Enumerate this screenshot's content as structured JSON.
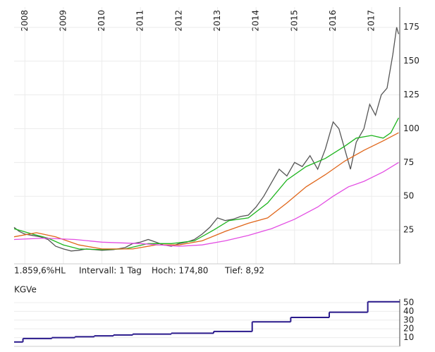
{
  "chart_data": [
    {
      "type": "line",
      "xlim": [
        2007.72,
        2017.73
      ],
      "xticks": [
        2008,
        2009,
        2010,
        2011,
        2012,
        2013,
        2014,
        2015,
        2016,
        2017
      ],
      "ylim": [
        0,
        190
      ],
      "yticks": [
        25,
        50,
        75,
        100,
        125,
        150,
        175
      ],
      "grid": true,
      "series": [
        {
          "color": "#555555",
          "x": [
            2007.72,
            2007.85,
            2008.0,
            2008.2,
            2008.4,
            2008.6,
            2008.8,
            2009.0,
            2009.2,
            2009.4,
            2009.6,
            2009.8,
            2010.0,
            2010.3,
            2010.6,
            2010.8,
            2011.0,
            2011.2,
            2011.4,
            2011.6,
            2011.8,
            2012.0,
            2012.2,
            2012.4,
            2012.6,
            2012.8,
            2013.0,
            2013.2,
            2013.4,
            2013.6,
            2013.8,
            2014.0,
            2014.2,
            2014.4,
            2014.6,
            2014.8,
            2015.0,
            2015.2,
            2015.4,
            2015.6,
            2015.8,
            2016.0,
            2016.15,
            2016.3,
            2016.45,
            2016.6,
            2016.8,
            2016.95,
            2017.1,
            2017.25,
            2017.4,
            2017.55,
            2017.65,
            2017.7
          ],
          "values": [
            27,
            24,
            22,
            21,
            20,
            18,
            13,
            11,
            9.5,
            10,
            11,
            10.5,
            10,
            10.5,
            12,
            15,
            16,
            18,
            16,
            14,
            13,
            15,
            16,
            18,
            22,
            27,
            34,
            32,
            33,
            35,
            36,
            42,
            50,
            60,
            70,
            65,
            75,
            72,
            80,
            70,
            85,
            105,
            100,
            85,
            70,
            90,
            100,
            118,
            110,
            125,
            130,
            155,
            175,
            170
          ]
        },
        {
          "color": "#1db41d",
          "x": [
            2007.72,
            2008.2,
            2008.6,
            2009.0,
            2009.4,
            2010.0,
            2010.6,
            2011.2,
            2011.8,
            2012.4,
            2012.9,
            2013.3,
            2013.8,
            2014.3,
            2014.8,
            2015.3,
            2015.8,
            2016.3,
            2016.6,
            2017.0,
            2017.3,
            2017.5,
            2017.7
          ],
          "values": [
            26,
            22,
            19,
            14,
            11,
            10.5,
            11,
            15,
            15,
            17,
            25,
            32,
            34,
            45,
            62,
            72,
            78,
            87,
            93,
            95,
            93,
            97,
            108
          ]
        },
        {
          "color": "#e0661a",
          "x": [
            2007.72,
            2008.3,
            2008.8,
            2009.4,
            2010.0,
            2010.8,
            2011.4,
            2012.0,
            2012.6,
            2013.2,
            2013.8,
            2014.3,
            2014.8,
            2015.3,
            2015.8,
            2016.3,
            2016.8,
            2017.3,
            2017.7
          ],
          "values": [
            20,
            23,
            20,
            14,
            11,
            11,
            14,
            14,
            17,
            24,
            30,
            34,
            45,
            57,
            66,
            76,
            84,
            91,
            97
          ]
        },
        {
          "color": "#e34ee3",
          "x": [
            2007.72,
            2008.5,
            2009.3,
            2010.0,
            2011.0,
            2012.0,
            2012.6,
            2013.2,
            2013.8,
            2014.4,
            2015.0,
            2015.6,
            2016.0,
            2016.4,
            2016.8,
            2017.3,
            2017.7
          ],
          "values": [
            18,
            19,
            18,
            16,
            15,
            13,
            14,
            17,
            21,
            26,
            33,
            42,
            50,
            57,
            61,
            68,
            75
          ]
        }
      ]
    },
    {
      "type": "step",
      "title": "KGVe",
      "xlim": [
        2007.72,
        2017.73
      ],
      "ylim": [
        0,
        54
      ],
      "yticks": [
        10,
        20,
        30,
        40,
        50
      ],
      "grid": true,
      "series": [
        {
          "color": "#2a1a8c",
          "x": [
            2007.72,
            2007.95,
            2008.7,
            2009.3,
            2009.8,
            2010.3,
            2010.8,
            2011.8,
            2012.9,
            2013.9,
            2014.9,
            2015.9,
            2016.9
          ],
          "values": [
            5,
            9,
            10,
            11,
            12,
            13,
            14,
            15,
            17,
            28,
            33,
            39,
            51
          ]
        }
      ]
    }
  ],
  "stats": [
    "1.859,6%HL",
    "Intervall: 1 Tag",
    "Hoch: 174,80",
    "Tief: 8,92"
  ]
}
